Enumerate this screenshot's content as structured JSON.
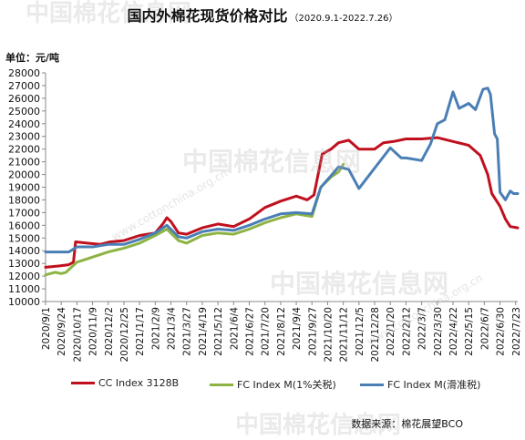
{
  "title": "国内外棉花现货价格对比",
  "subtitle": "（2020.9.1-2022.7.26）",
  "unit": "单位：元/吨",
  "source": "数据来源：棉花展望BCO",
  "watermark": {
    "brand": "中国棉花信息网",
    "url": "www.cottonchina.org.cn"
  },
  "chart_data": {
    "type": "line",
    "title": "国内外棉花现货价格对比",
    "ylabel": "元/吨",
    "ylim": [
      10000,
      28000
    ],
    "ytick_step": 1000,
    "grid": false,
    "legend_position": "bottom",
    "x_tick_labels": [
      "2020/9/1",
      "2020/9/24",
      "2020/10/17",
      "2020/11/9",
      "2020/12/2",
      "2020/12/25",
      "2021/1/17",
      "2021/2/9",
      "2021/3/4",
      "2021/3/27",
      "2021/4/19",
      "2021/5/12",
      "2021/6/4",
      "2021/6/27",
      "2021/7/20",
      "2021/8/12",
      "2021/9/4",
      "2021/9/27",
      "2021/10/20",
      "2021/11/12",
      "2021/12/5",
      "2021/12/28",
      "2022/1/20",
      "2022/2/12",
      "2022/3/7",
      "2022/3/30",
      "2022/4/22",
      "2022/5/15",
      "2022/6/7",
      "2022/6/30",
      "2022/7/23"
    ],
    "series": [
      {
        "name": "CC Index 3128B",
        "color": "#c0101e",
        "points": [
          [
            "2020/9/1",
            12700
          ],
          [
            "2020/9/20",
            12800
          ],
          [
            "2020/10/5",
            12900
          ],
          [
            "2020/10/12",
            13100
          ],
          [
            "2020/10/15",
            14700
          ],
          [
            "2020/11/1",
            14600
          ],
          [
            "2020/11/20",
            14500
          ],
          [
            "2020/12/5",
            14700
          ],
          [
            "2020/12/25",
            14800
          ],
          [
            "2021/1/17",
            15200
          ],
          [
            "2021/2/9",
            15400
          ],
          [
            "2021/2/20",
            16100
          ],
          [
            "2021/2/26",
            16600
          ],
          [
            "2021/3/4",
            16300
          ],
          [
            "2021/3/15",
            15400
          ],
          [
            "2021/3/27",
            15300
          ],
          [
            "2021/4/19",
            15800
          ],
          [
            "2021/5/12",
            16100
          ],
          [
            "2021/6/4",
            15900
          ],
          [
            "2021/6/27",
            16500
          ],
          [
            "2021/7/20",
            17400
          ],
          [
            "2021/8/12",
            17900
          ],
          [
            "2021/9/4",
            18300
          ],
          [
            "2021/9/20",
            18000
          ],
          [
            "2021/9/30",
            18400
          ],
          [
            "2021/10/12",
            21600
          ],
          [
            "2021/10/25",
            22000
          ],
          [
            "2021/11/5",
            22500
          ],
          [
            "2021/11/20",
            22700
          ],
          [
            "2021/12/5",
            22000
          ],
          [
            "2021/12/28",
            22000
          ],
          [
            "2022/1/10",
            22500
          ],
          [
            "2022/1/25",
            22600
          ],
          [
            "2022/2/12",
            22800
          ],
          [
            "2022/3/7",
            22800
          ],
          [
            "2022/3/30",
            22900
          ],
          [
            "2022/4/22",
            22600
          ],
          [
            "2022/5/15",
            22300
          ],
          [
            "2022/6/1",
            21500
          ],
          [
            "2022/6/12",
            20000
          ],
          [
            "2022/6/18",
            18500
          ],
          [
            "2022/6/30",
            17500
          ],
          [
            "2022/7/8",
            16500
          ],
          [
            "2022/7/15",
            15900
          ],
          [
            "2022/7/26",
            15800
          ]
        ]
      },
      {
        "name": "FC Index M(1%关税)",
        "color": "#8db443",
        "points": [
          [
            "2020/9/1",
            12100
          ],
          [
            "2020/9/15",
            12300
          ],
          [
            "2020/9/24",
            12200
          ],
          [
            "2020/10/1",
            12300
          ],
          [
            "2020/10/17",
            13100
          ],
          [
            "2020/11/9",
            13500
          ],
          [
            "2020/12/2",
            13900
          ],
          [
            "2020/12/25",
            14200
          ],
          [
            "2021/1/17",
            14600
          ],
          [
            "2021/2/9",
            15200
          ],
          [
            "2021/2/26",
            15700
          ],
          [
            "2021/3/15",
            14800
          ],
          [
            "2021/3/27",
            14600
          ],
          [
            "2021/4/19",
            15200
          ],
          [
            "2021/5/12",
            15400
          ],
          [
            "2021/6/4",
            15300
          ],
          [
            "2021/6/27",
            15700
          ],
          [
            "2021/7/20",
            16200
          ],
          [
            "2021/8/12",
            16600
          ],
          [
            "2021/9/4",
            16900
          ],
          [
            "2021/9/27",
            16700
          ],
          [
            "2021/10/10",
            19000
          ],
          [
            "2021/10/25",
            19800
          ],
          [
            "2021/11/5",
            20200
          ],
          [
            "2021/11/12",
            20800
          ]
        ]
      },
      {
        "name": "FC Index M(滑准税)",
        "color": "#4a7fb5",
        "points": [
          [
            "2020/9/1",
            13900
          ],
          [
            "2020/9/24",
            13900
          ],
          [
            "2020/10/5",
            13900
          ],
          [
            "2020/10/17",
            14300
          ],
          [
            "2020/11/9",
            14300
          ],
          [
            "2020/12/2",
            14500
          ],
          [
            "2020/12/25",
            14500
          ],
          [
            "2021/1/17",
            14900
          ],
          [
            "2021/2/9",
            15400
          ],
          [
            "2021/2/26",
            16000
          ],
          [
            "2021/3/15",
            15100
          ],
          [
            "2021/3/27",
            15000
          ],
          [
            "2021/4/19",
            15500
          ],
          [
            "2021/5/12",
            15700
          ],
          [
            "2021/6/4",
            15600
          ],
          [
            "2021/6/27",
            16000
          ],
          [
            "2021/7/20",
            16500
          ],
          [
            "2021/8/12",
            16900
          ],
          [
            "2021/9/4",
            17000
          ],
          [
            "2021/9/27",
            16900
          ],
          [
            "2021/10/10",
            19000
          ],
          [
            "2021/10/25",
            19900
          ],
          [
            "2021/11/5",
            20600
          ],
          [
            "2021/11/20",
            20400
          ],
          [
            "2021/12/5",
            18900
          ],
          [
            "2021/12/28",
            20500
          ],
          [
            "2022/1/10",
            21400
          ],
          [
            "2022/1/20",
            22100
          ],
          [
            "2022/2/5",
            21300
          ],
          [
            "2022/2/12",
            21300
          ],
          [
            "2022/3/7",
            21100
          ],
          [
            "2022/3/20",
            22400
          ],
          [
            "2022/3/30",
            24000
          ],
          [
            "2022/4/10",
            24300
          ],
          [
            "2022/4/22",
            26500
          ],
          [
            "2022/5/1",
            25200
          ],
          [
            "2022/5/15",
            25600
          ],
          [
            "2022/5/25",
            25100
          ],
          [
            "2022/6/5",
            26700
          ],
          [
            "2022/6/12",
            26800
          ],
          [
            "2022/6/16",
            26300
          ],
          [
            "2022/6/22",
            23200
          ],
          [
            "2022/6/26",
            22800
          ],
          [
            "2022/6/30",
            18600
          ],
          [
            "2022/7/8",
            18000
          ],
          [
            "2022/7/15",
            18700
          ],
          [
            "2022/7/20",
            18500
          ],
          [
            "2022/7/26",
            18500
          ]
        ]
      }
    ]
  }
}
